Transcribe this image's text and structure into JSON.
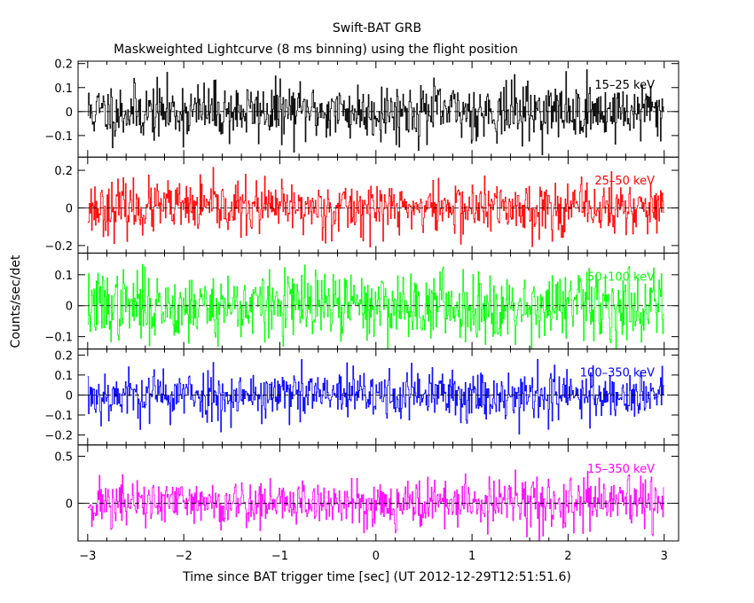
{
  "chart_data": {
    "type": "line",
    "title": "Swift-BAT GRB",
    "subtitle": "Maskweighted Lightcurve (8 ms binning) using the flight position",
    "xlabel": "Time since BAT trigger time [sec] (UT 2012-12-29T12:51:51.6)",
    "ylabel": "Counts/sec/det",
    "xlim": [
      -3.1,
      3.15
    ],
    "xticks": [
      -3,
      -2,
      -1,
      0,
      1,
      2,
      3
    ],
    "xtick_labels": [
      "−3",
      "−2",
      "−1",
      "0",
      "1",
      "2",
      "3"
    ],
    "grid": false,
    "panels": [
      {
        "name": "15–25 keV",
        "color": "#000000",
        "ylim": [
          -0.19,
          0.21
        ],
        "yticks": [
          -0.1,
          0,
          0.1,
          0.2
        ],
        "ytick_labels": [
          "−0.1",
          "0",
          "0.1",
          "0.2"
        ],
        "amplitude": 0.06,
        "seed": 11
      },
      {
        "name": "25–50 keV",
        "color": "#ff0000",
        "ylim": [
          -0.24,
          0.27
        ],
        "yticks": [
          -0.2,
          0,
          0.2
        ],
        "ytick_labels": [
          "−0.2",
          "0",
          "0.2"
        ],
        "amplitude": 0.07,
        "seed": 23
      },
      {
        "name": "50–100 keV",
        "color": "#00ff00",
        "ylim": [
          -0.14,
          0.17
        ],
        "yticks": [
          -0.1,
          0,
          0.1
        ],
        "ytick_labels": [
          "−0.1",
          "0",
          "0.1"
        ],
        "amplitude": 0.055,
        "seed": 37
      },
      {
        "name": "100–350 keV",
        "color": "#0000ff",
        "ylim": [
          -0.25,
          0.23
        ],
        "yticks": [
          -0.2,
          -0.1,
          0,
          0.1,
          0.2
        ],
        "ytick_labels": [
          "−0.2",
          "−0.1",
          "0",
          "0.1",
          "0.2"
        ],
        "amplitude": 0.065,
        "seed": 53
      },
      {
        "name": "15–350 keV",
        "color": "#ff00ff",
        "ylim": [
          -0.4,
          0.62
        ],
        "yticks": [
          0,
          0.5
        ],
        "ytick_labels": [
          "0",
          "0.5"
        ],
        "amplitude": 0.13,
        "seed": 71
      }
    ],
    "series_time_range": [
      -3.0,
      3.0
    ],
    "bin_width_sec": 0.008
  }
}
